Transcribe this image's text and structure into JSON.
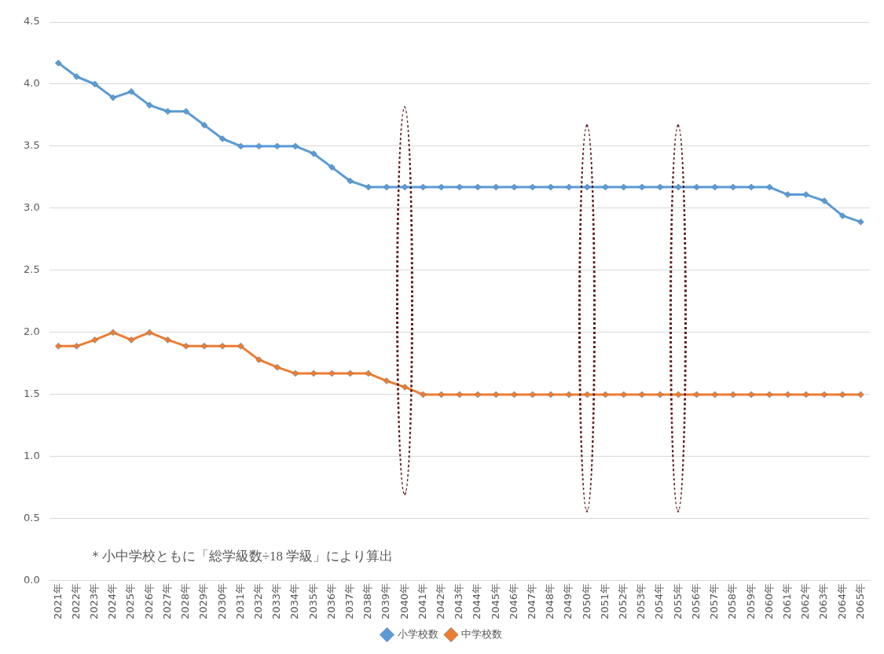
{
  "chart_data": {
    "type": "line",
    "categories": [
      "2021年",
      "2022年",
      "2023年",
      "2024年",
      "2025年",
      "2026年",
      "2027年",
      "2028年",
      "2029年",
      "2030年",
      "2031年",
      "2032年",
      "2033年",
      "2034年",
      "2035年",
      "2036年",
      "2037年",
      "2038年",
      "2039年",
      "2040年",
      "2041年",
      "2042年",
      "2043年",
      "2044年",
      "2045年",
      "2046年",
      "2047年",
      "2048年",
      "2049年",
      "2050年",
      "2051年",
      "2052年",
      "2053年",
      "2054年",
      "2055年",
      "2056年",
      "2057年",
      "2058年",
      "2059年",
      "2060年",
      "2061年",
      "2062年",
      "2063年",
      "2064年",
      "2065年"
    ],
    "series": [
      {
        "name": "小学校数",
        "color": "#5b9bd5",
        "values": [
          4.17,
          4.06,
          4.0,
          3.89,
          3.94,
          3.83,
          3.78,
          3.78,
          3.67,
          3.56,
          3.5,
          3.5,
          3.5,
          3.5,
          3.44,
          3.33,
          3.22,
          3.17,
          3.17,
          3.17,
          3.17,
          3.17,
          3.17,
          3.17,
          3.17,
          3.17,
          3.17,
          3.17,
          3.17,
          3.17,
          3.17,
          3.17,
          3.17,
          3.17,
          3.17,
          3.17,
          3.17,
          3.17,
          3.17,
          3.17,
          3.11,
          3.11,
          3.06,
          2.94,
          2.89
        ]
      },
      {
        "name": "中学校数",
        "color": "#ed7d31",
        "values": [
          1.89,
          1.89,
          1.94,
          2.0,
          1.94,
          2.0,
          1.94,
          1.89,
          1.89,
          1.89,
          1.89,
          1.78,
          1.72,
          1.67,
          1.67,
          1.67,
          1.67,
          1.67,
          1.61,
          1.56,
          1.5,
          1.5,
          1.5,
          1.5,
          1.5,
          1.5,
          1.5,
          1.5,
          1.5,
          1.5,
          1.5,
          1.5,
          1.5,
          1.5,
          1.5,
          1.5,
          1.5,
          1.5,
          1.5,
          1.5,
          1.5,
          1.5,
          1.5,
          1.5,
          1.5
        ]
      }
    ],
    "ylim": [
      0,
      4.5
    ],
    "yticks": [
      {
        "value": 0,
        "label": "0.0"
      },
      {
        "value": 0.5,
        "label": "0.5"
      },
      {
        "value": 1,
        "label": "1.0"
      },
      {
        "value": 1.5,
        "label": "1.5"
      },
      {
        "value": 2,
        "label": "2.0"
      },
      {
        "value": 2.5,
        "label": "2.5"
      },
      {
        "value": 3,
        "label": "3.0"
      },
      {
        "value": 3.5,
        "label": "3.5"
      },
      {
        "value": 4,
        "label": "4.0"
      },
      {
        "value": 4.5,
        "label": "4.5"
      }
    ],
    "grid": "y",
    "legend": "bottom",
    "marker": "diamond",
    "line_style": "solid",
    "annotations": [
      "＊小中学校ともに「総学級数÷18 学級」により算出"
    ]
  }
}
